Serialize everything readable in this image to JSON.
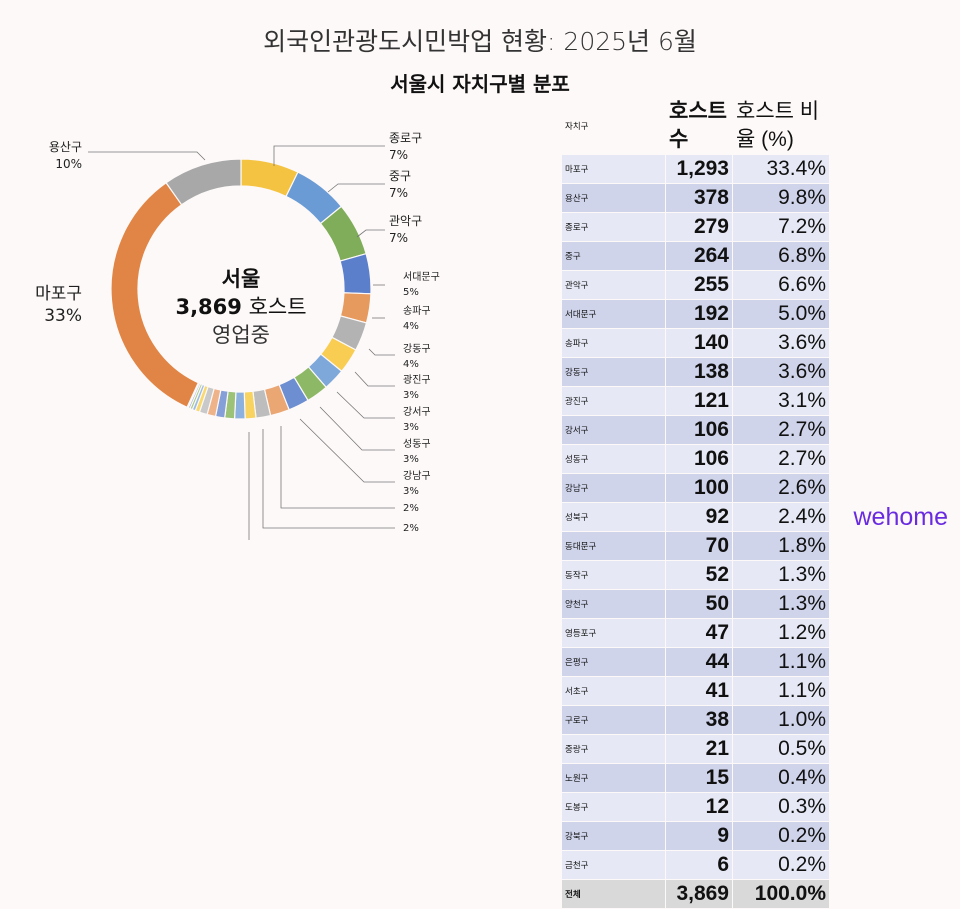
{
  "title": "외국인관광도시민박업 현황: 2025년 6월",
  "subtitle": "서울시 자치구별 분포",
  "logo": "wehome",
  "chart_data": {
    "type": "pie",
    "donut": true,
    "center": {
      "line1": "서울",
      "count": "3,869",
      "unit": "호스트",
      "line3": "영업중"
    },
    "slices": [
      {
        "name": "종로구",
        "value": 279,
        "label": "7%",
        "color": "#f5c342"
      },
      {
        "name": "중구",
        "value": 264,
        "label": "7%",
        "color": "#6a9bd4"
      },
      {
        "name": "관악구",
        "value": 255,
        "label": "7%",
        "color": "#7fad59"
      },
      {
        "name": "서대문구",
        "value": 192,
        "label": "5%",
        "color": "#5b7fcb"
      },
      {
        "name": "송파구",
        "value": 140,
        "label": "4%",
        "color": "#e69a5e"
      },
      {
        "name": "강동구",
        "value": 138,
        "label": "4%",
        "color": "#b3b3b3"
      },
      {
        "name": "광진구",
        "value": 121,
        "label": "3%",
        "color": "#f8cd52"
      },
      {
        "name": "강서구",
        "value": 106,
        "label": "3%",
        "color": "#7ea8da"
      },
      {
        "name": "성동구",
        "value": 106,
        "label": "3%",
        "color": "#8db865"
      },
      {
        "name": "강남구",
        "value": 100,
        "label": "3%",
        "color": "#6d8ed0"
      },
      {
        "name": "성북구",
        "value": 92,
        "label": "2%",
        "color": "#eaa673"
      },
      {
        "name": "동대문구",
        "value": 70,
        "label": "2%",
        "color": "#bdbdbd"
      },
      {
        "name": "동작구",
        "value": 52,
        "label": "",
        "color": "#f8d35f"
      },
      {
        "name": "양천구",
        "value": 50,
        "label": "",
        "color": "#8db1de"
      },
      {
        "name": "영등포구",
        "value": 47,
        "label": "",
        "color": "#9bc277"
      },
      {
        "name": "은평구",
        "value": 44,
        "label": "",
        "color": "#859fd8"
      },
      {
        "name": "서초구",
        "value": 41,
        "label": "",
        "color": "#eeb389"
      },
      {
        "name": "구로구",
        "value": 38,
        "label": "",
        "color": "#c9c9c9"
      },
      {
        "name": "중랑구",
        "value": 21,
        "label": "",
        "color": "#f9d86e"
      },
      {
        "name": "노원구",
        "value": 15,
        "label": "",
        "color": "#9cbde2"
      },
      {
        "name": "도봉구",
        "value": 12,
        "label": "",
        "color": "#a9ca8a"
      },
      {
        "name": "강북구",
        "value": 9,
        "label": "",
        "color": "#9ab0de"
      },
      {
        "name": "금천구",
        "value": 6,
        "label": "",
        "color": "#f1c3a0"
      },
      {
        "name": "마포구",
        "value": 1293,
        "label": "33%",
        "color": "#e08545"
      },
      {
        "name": "용산구",
        "value": 378,
        "label": "10%",
        "color": "#a8a8a8"
      }
    ]
  },
  "table": {
    "headers": [
      "자치구",
      "호스트 수",
      "호스트 비율 (%)"
    ],
    "rows": [
      [
        "마포구",
        "1,293",
        "33.4%"
      ],
      [
        "용산구",
        "378",
        "9.8%"
      ],
      [
        "종로구",
        "279",
        "7.2%"
      ],
      [
        "중구",
        "264",
        "6.8%"
      ],
      [
        "관악구",
        "255",
        "6.6%"
      ],
      [
        "서대문구",
        "192",
        "5.0%"
      ],
      [
        "송파구",
        "140",
        "3.6%"
      ],
      [
        "강동구",
        "138",
        "3.6%"
      ],
      [
        "광진구",
        "121",
        "3.1%"
      ],
      [
        "강서구",
        "106",
        "2.7%"
      ],
      [
        "성동구",
        "106",
        "2.7%"
      ],
      [
        "강남구",
        "100",
        "2.6%"
      ],
      [
        "성북구",
        "92",
        "2.4%"
      ],
      [
        "동대문구",
        "70",
        "1.8%"
      ],
      [
        "동작구",
        "52",
        "1.3%"
      ],
      [
        "양천구",
        "50",
        "1.3%"
      ],
      [
        "영등포구",
        "47",
        "1.2%"
      ],
      [
        "은평구",
        "44",
        "1.1%"
      ],
      [
        "서초구",
        "41",
        "1.1%"
      ],
      [
        "구로구",
        "38",
        "1.0%"
      ],
      [
        "중랑구",
        "21",
        "0.5%"
      ],
      [
        "노원구",
        "15",
        "0.4%"
      ],
      [
        "도봉구",
        "12",
        "0.3%"
      ],
      [
        "강북구",
        "9",
        "0.2%"
      ],
      [
        "금천구",
        "6",
        "0.2%"
      ]
    ],
    "total": [
      "전체",
      "3,869",
      "100.0%"
    ]
  }
}
